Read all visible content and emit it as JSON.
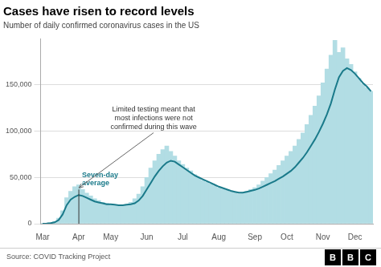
{
  "chart_data": {
    "type": "bar",
    "title": "Cases have risen to record levels",
    "subtitle": "Number of daily confirmed coronavirus cases in the US",
    "source": "Source: COVID Tracking Project",
    "logo": "BBC",
    "annotation": "Limited testing meant that\nmost infections were not\nconfirmed during this wave",
    "categories": [
      "Mar",
      null,
      null,
      null,
      null,
      null,
      null,
      null,
      null,
      "Apr",
      null,
      null,
      null,
      null,
      null,
      null,
      null,
      "May",
      null,
      null,
      null,
      null,
      null,
      null,
      null,
      null,
      "Jun",
      null,
      null,
      null,
      null,
      null,
      null,
      null,
      null,
      "Jul",
      null,
      null,
      null,
      null,
      null,
      null,
      null,
      null,
      "Aug",
      null,
      null,
      null,
      null,
      null,
      null,
      null,
      null,
      "Sep",
      null,
      null,
      null,
      null,
      null,
      null,
      null,
      "Oct",
      null,
      null,
      null,
      null,
      null,
      null,
      null,
      null,
      "Nov",
      null,
      null,
      null,
      null,
      null,
      null,
      null,
      "Dec",
      null,
      null,
      null,
      null
    ],
    "series": [
      {
        "type": "bar",
        "color": "#b2dde4",
        "values": [
          200,
          500,
          1100,
          2500,
          6000,
          14000,
          28000,
          35000,
          40000,
          42000,
          37000,
          33000,
          30000,
          27000,
          25000,
          23000,
          22000,
          21000,
          20000,
          19500,
          20000,
          21000,
          23000,
          27000,
          32000,
          40000,
          50000,
          60000,
          68000,
          75000,
          80000,
          84000,
          78000,
          73000,
          68000,
          64000,
          60000,
          57000,
          53000,
          50000,
          47000,
          45000,
          43000,
          41000,
          39000,
          37500,
          36000,
          34500,
          33500,
          32500,
          33000,
          35000,
          37000,
          39000,
          42000,
          46000,
          50000,
          54000,
          58000,
          63000,
          68000,
          73000,
          78000,
          84000,
          91000,
          98000,
          107000,
          117000,
          127000,
          138000,
          152000,
          167000,
          182000,
          198000,
          185000,
          190000,
          178000,
          172000,
          164000,
          157000,
          151000,
          147000,
          143000
        ]
      },
      {
        "type": "line",
        "name": "Seven-day\naverage",
        "color": "#1a7a8a",
        "values": [
          100,
          300,
          700,
          1500,
          4000,
          10000,
          20000,
          26000,
          29000,
          31000,
          30000,
          28000,
          26000,
          24000,
          23000,
          22000,
          21000,
          21000,
          20500,
          20000,
          20000,
          20500,
          21000,
          22000,
          25000,
          30000,
          37000,
          44000,
          51000,
          57000,
          62000,
          66000,
          68000,
          67000,
          64000,
          61000,
          58000,
          55000,
          52000,
          50000,
          48000,
          46000,
          44000,
          42000,
          40000,
          38500,
          37000,
          35500,
          34500,
          33500,
          33500,
          34500,
          35500,
          36500,
          38000,
          40000,
          42000,
          44000,
          46000,
          48500,
          51000,
          54000,
          57000,
          61000,
          66000,
          71000,
          77000,
          84000,
          91000,
          99000,
          108000,
          118000,
          130000,
          145000,
          158000,
          165000,
          168000,
          166000,
          162000,
          157000,
          152000,
          148000,
          143000
        ]
      }
    ],
    "ylim": [
      0,
      200000
    ],
    "yticks": [
      0,
      {
        "value": 50000,
        "label": "50,000"
      },
      {
        "value": 100000,
        "label": "100,000"
      },
      {
        "value": 150000,
        "label": "150,000"
      }
    ],
    "grid": true
  }
}
